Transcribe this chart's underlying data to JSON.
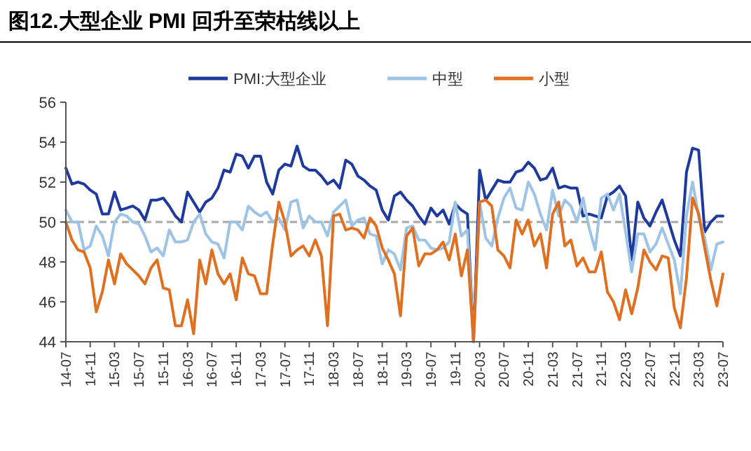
{
  "chart_data": {
    "type": "line",
    "title": "图12.大型企业 PMI 回升至荣枯线以上",
    "categories": [
      "14-07",
      null,
      null,
      null,
      "14-11",
      null,
      null,
      null,
      "15-03",
      null,
      null,
      null,
      "15-07",
      null,
      null,
      null,
      "15-11",
      null,
      null,
      null,
      "16-03",
      null,
      null,
      null,
      "16-07",
      null,
      null,
      null,
      "16-11",
      null,
      null,
      null,
      "17-03",
      null,
      null,
      null,
      "17-07",
      null,
      null,
      null,
      "17-11",
      null,
      null,
      null,
      "18-03",
      null,
      null,
      null,
      "18-07",
      null,
      null,
      null,
      "18-11",
      null,
      null,
      null,
      "19-03",
      null,
      null,
      null,
      "19-07",
      null,
      null,
      null,
      "19-11",
      null,
      null,
      null,
      "20-03",
      null,
      null,
      null,
      "20-07",
      null,
      null,
      null,
      "20-11",
      null,
      null,
      null,
      "21-03",
      null,
      null,
      null,
      "21-07",
      null,
      null,
      null,
      "21-11",
      null,
      null,
      null,
      "22-03",
      null,
      null,
      null,
      "22-07",
      null,
      null,
      null,
      "22-11",
      null,
      null,
      null,
      "23-03",
      null,
      null,
      null,
      "23-07"
    ],
    "series": [
      {
        "name": "PMI:大型企业",
        "color": "#1f3a9e",
        "values": [
          52.7,
          51.9,
          52.0,
          51.9,
          51.6,
          51.4,
          50.4,
          50.4,
          51.5,
          50.6,
          50.7,
          50.8,
          50.6,
          50.1,
          51.1,
          51.1,
          51.2,
          50.8,
          50.3,
          50.0,
          51.5,
          51.0,
          50.5,
          51.0,
          51.2,
          51.7,
          52.6,
          52.5,
          53.4,
          53.3,
          52.7,
          53.3,
          53.3,
          52.0,
          51.4,
          52.6,
          52.9,
          52.8,
          53.8,
          52.8,
          52.6,
          52.6,
          52.3,
          51.9,
          52.1,
          51.7,
          53.1,
          52.9,
          52.3,
          52.1,
          51.8,
          51.6,
          50.6,
          50.1,
          51.3,
          51.5,
          51.1,
          50.8,
          50.3,
          49.9,
          50.7,
          50.3,
          50.6,
          49.9,
          50.9,
          50.6,
          50.4,
          44,
          52.6,
          51.1,
          51.6,
          52.1,
          52.0,
          52.0,
          52.5,
          52.6,
          53.0,
          52.7,
          52.1,
          52.2,
          52.7,
          51.7,
          51.8,
          51.7,
          51.7,
          50.3,
          50.4,
          50.3,
          50.2,
          51.3,
          51.5,
          51.8,
          51.3,
          48.1,
          51.0,
          50.2,
          49.8,
          50.5,
          51.1,
          50.1,
          49.1,
          48.3,
          52.5,
          53.7,
          53.6,
          49.5,
          50.0,
          50.3,
          50.3
        ]
      },
      {
        "name": "中型",
        "color": "#9dc3e6",
        "values": [
          50.6,
          50.0,
          50.0,
          48.6,
          48.8,
          49.8,
          49.3,
          48.3,
          50.0,
          50.4,
          50.3,
          50.0,
          49.9,
          49.3,
          48.5,
          48.7,
          48.3,
          49.6,
          49.0,
          49.0,
          49.1,
          50.0,
          50.4,
          49.4,
          49.0,
          48.9,
          48.2,
          50.0,
          50.0,
          49.6,
          50.8,
          50.5,
          50.3,
          50.5,
          50.0,
          50.2,
          49.6,
          51.0,
          51.1,
          49.7,
          50.3,
          50.0,
          50.0,
          49.3,
          50.5,
          50.8,
          51.1,
          49.8,
          50.1,
          50.2,
          49.4,
          49.3,
          47.9,
          48.6,
          48.4,
          47.6,
          49.7,
          49.8,
          49.1,
          49.1,
          48.7,
          48.6,
          48.7,
          49.0,
          51.0,
          49.3,
          49.6,
          44,
          51.0,
          49.2,
          48.8,
          50.2,
          51.2,
          51.7,
          50.7,
          50.6,
          52.0,
          51.4,
          50.4,
          49.6,
          51.6,
          50.3,
          51.1,
          50.8,
          50.0,
          51.2,
          49.7,
          48.6,
          51.2,
          51.4,
          50.6,
          51.4,
          49.5,
          47.5,
          49.4,
          49.4,
          48.5,
          48.9,
          49.7,
          48.9,
          48.1,
          46.4,
          50.3,
          52.0,
          50.3,
          49.2,
          47.6,
          48.9,
          49.0
        ]
      },
      {
        "name": "小型",
        "color": "#e07020",
        "values": [
          50.0,
          49.1,
          48.6,
          48.5,
          47.7,
          45.5,
          46.5,
          48.1,
          46.9,
          48.4,
          47.9,
          47.6,
          47.3,
          46.9,
          47.7,
          48.1,
          46.7,
          46.6,
          44.8,
          44.8,
          46.1,
          44.4,
          48.1,
          46.9,
          48.6,
          47.4,
          46.9,
          47.4,
          46.1,
          48.2,
          47.4,
          47.3,
          46.4,
          46.4,
          48.9,
          51.0,
          50.0,
          48.3,
          48.6,
          48.8,
          48.3,
          49.1,
          48.3,
          44.8,
          50.3,
          50.4,
          49.6,
          49.7,
          49.6,
          49.2,
          50.2,
          49.8,
          48.7,
          48.1,
          47.4,
          45.3,
          49.3,
          49.7,
          47.8,
          48.4,
          48.4,
          48.6,
          49.0,
          48.1,
          49.4,
          47.3,
          48.6,
          44,
          51.0,
          51.1,
          50.8,
          48.6,
          48.3,
          47.7,
          50.1,
          49.4,
          50.1,
          48.8,
          49.4,
          47.7,
          50.4,
          51.0,
          48.8,
          49.1,
          47.8,
          48.2,
          47.5,
          47.5,
          48.5,
          46.5,
          46.0,
          45.1,
          46.6,
          45.4,
          46.7,
          48.6,
          48.0,
          47.6,
          48.3,
          48.2,
          45.7,
          44.7,
          47.2,
          51.2,
          50.4,
          48.7,
          47.1,
          45.8,
          47.4
        ]
      }
    ],
    "ylim": [
      44,
      56
    ],
    "yticks": [
      44,
      46,
      48,
      50,
      52,
      54,
      56
    ],
    "ref_lines": [
      {
        "axis": "y",
        "value": 50,
        "color": "#a6a6a6",
        "line_style": "dashed"
      }
    ],
    "legend": "top",
    "grid": false,
    "line_style": "solid",
    "marker": "none"
  }
}
